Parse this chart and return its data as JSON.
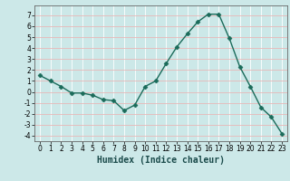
{
  "x": [
    0,
    1,
    2,
    3,
    4,
    5,
    6,
    7,
    8,
    9,
    10,
    11,
    12,
    13,
    14,
    15,
    16,
    17,
    18,
    19,
    20,
    21,
    22,
    23
  ],
  "y": [
    1.5,
    1.0,
    0.5,
    -0.1,
    -0.1,
    -0.3,
    -0.7,
    -0.8,
    -1.7,
    -1.2,
    0.5,
    1.0,
    2.6,
    4.1,
    5.3,
    6.4,
    7.1,
    7.1,
    4.9,
    2.3,
    0.5,
    -1.4,
    -2.3,
    -3.8
  ],
  "line_color": "#1a6b5a",
  "marker": "D",
  "markersize": 2.5,
  "linewidth": 1.0,
  "xlabel": "Humidex (Indice chaleur)",
  "xlim": [
    -0.5,
    23.5
  ],
  "ylim": [
    -4.5,
    7.9
  ],
  "yticks": [
    -4,
    -3,
    -2,
    -1,
    0,
    1,
    2,
    3,
    4,
    5,
    6,
    7
  ],
  "xticks": [
    0,
    1,
    2,
    3,
    4,
    5,
    6,
    7,
    8,
    9,
    10,
    11,
    12,
    13,
    14,
    15,
    16,
    17,
    18,
    19,
    20,
    21,
    22,
    23
  ],
  "bg_color": "#cce8e8",
  "grid_color": "#ffffff",
  "grid_color_minor": "#e8c8c8",
  "tick_fontsize": 5.5,
  "xlabel_fontsize": 7
}
